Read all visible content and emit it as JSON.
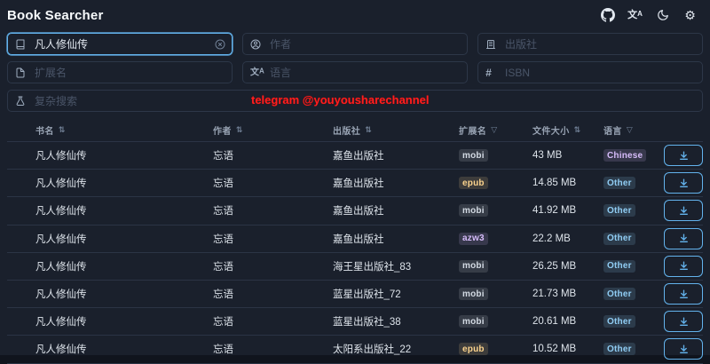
{
  "app": {
    "title": "Book Searcher"
  },
  "toolbar": {
    "icons": [
      {
        "name": "github"
      },
      {
        "name": "translate",
        "label": "文A"
      },
      {
        "name": "dark-mode"
      },
      {
        "name": "settings",
        "glyph": "⚙"
      }
    ]
  },
  "search": {
    "title": {
      "value": "凡人修仙传"
    },
    "author": {
      "placeholder": "作者"
    },
    "publisher": {
      "placeholder": "出版社"
    },
    "extension": {
      "placeholder": "扩展名"
    },
    "language": {
      "placeholder": "语言"
    },
    "isbn": {
      "placeholder": "ISBN"
    },
    "complex": {
      "placeholder": "复杂搜索"
    },
    "language_icon_main": "文",
    "language_icon_sub": "A",
    "isbn_icon": "#"
  },
  "watermark": "telegram @youyousharechannel",
  "table": {
    "headers": [
      {
        "label": "书名",
        "control": "sort"
      },
      {
        "label": "作者",
        "control": "sort"
      },
      {
        "label": "出版社",
        "control": "sort"
      },
      {
        "label": "扩展名",
        "control": "filter"
      },
      {
        "label": "文件大小",
        "control": "sort"
      },
      {
        "label": "语言",
        "control": "filter"
      }
    ],
    "sort_icon": "⇅",
    "filter_icon": "▽",
    "rows": [
      {
        "title": "凡人修仙传",
        "author": "忘语",
        "publisher": "嘉鱼出版社",
        "extension": "mobi",
        "extension_color": "gray",
        "size": "43 MB",
        "language": "Chinese",
        "language_color": "purple"
      },
      {
        "title": "凡人修仙传",
        "author": "忘语",
        "publisher": "嘉鱼出版社",
        "extension": "epub",
        "extension_color": "orange",
        "size": "14.85 MB",
        "language": "Other",
        "language_color": "blue"
      },
      {
        "title": "凡人修仙传",
        "author": "忘语",
        "publisher": "嘉鱼出版社",
        "extension": "mobi",
        "extension_color": "gray",
        "size": "41.92 MB",
        "language": "Other",
        "language_color": "blue"
      },
      {
        "title": "凡人修仙传",
        "author": "忘语",
        "publisher": "嘉鱼出版社",
        "extension": "azw3",
        "extension_color": "purple",
        "size": "22.2 MB",
        "language": "Other",
        "language_color": "blue"
      },
      {
        "title": "凡人修仙传",
        "author": "忘语",
        "publisher": "海王星出版社_83",
        "extension": "mobi",
        "extension_color": "gray",
        "size": "26.25 MB",
        "language": "Other",
        "language_color": "blue"
      },
      {
        "title": "凡人修仙传",
        "author": "忘语",
        "publisher": "蓝星出版社_72",
        "extension": "mobi",
        "extension_color": "gray",
        "size": "21.73 MB",
        "language": "Other",
        "language_color": "blue"
      },
      {
        "title": "凡人修仙传",
        "author": "忘语",
        "publisher": "蓝星出版社_38",
        "extension": "mobi",
        "extension_color": "gray",
        "size": "20.61 MB",
        "language": "Other",
        "language_color": "blue"
      },
      {
        "title": "凡人修仙传",
        "author": "忘语",
        "publisher": "太阳系出版社_22",
        "extension": "epub",
        "extension_color": "orange",
        "size": "10.52 MB",
        "language": "Other",
        "language_color": "blue"
      }
    ]
  },
  "colors": {
    "accent": "#63b3ed",
    "watermark_red": "#ff1f1f",
    "badge_gray": "#d3dae3",
    "badge_orange": "#fbd38d",
    "badge_purple": "#d6bcfa",
    "badge_blue": "#90cdf4",
    "background": "#1a202c"
  }
}
